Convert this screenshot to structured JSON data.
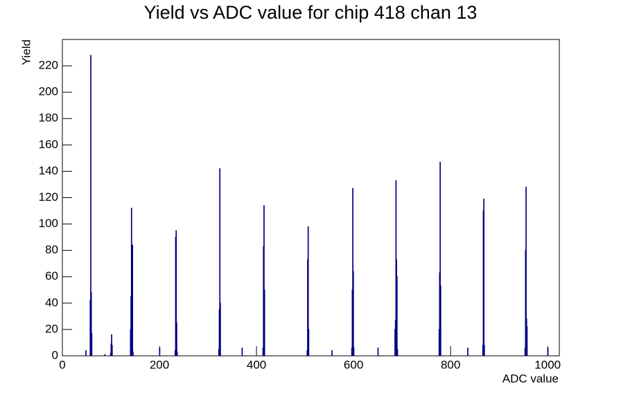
{
  "chart_data": {
    "type": "histogram",
    "title": "Yield vs ADC value for chip 418 chan 13",
    "x_label": "ADC value",
    "y_label": "Yield",
    "color": "#000080",
    "x": [
      48,
      57,
      58,
      59,
      60,
      87,
      99,
      100,
      101,
      102,
      140,
      141,
      142,
      143,
      144,
      145,
      200,
      232,
      233,
      234,
      235,
      236,
      322,
      323,
      324,
      325,
      370,
      413,
      414,
      415,
      416,
      504,
      505,
      506,
      507,
      555,
      596,
      597,
      598,
      599,
      600,
      650,
      685,
      686,
      687,
      688,
      689,
      690,
      776,
      777,
      778,
      779,
      835,
      866,
      867,
      868,
      869,
      953,
      954,
      955,
      956,
      957,
      1000
    ],
    "values": [
      4,
      42,
      228,
      48,
      17,
      1,
      2,
      9,
      16,
      8,
      20,
      45,
      112,
      45,
      84,
      3,
      6,
      4,
      90,
      95,
      25,
      3,
      5,
      35,
      142,
      40,
      6,
      6,
      83,
      114,
      50,
      4,
      73,
      98,
      20,
      4,
      6,
      50,
      127,
      64,
      6,
      6,
      20,
      27,
      133,
      73,
      60,
      5,
      20,
      63,
      147,
      53,
      6,
      8,
      110,
      119,
      8,
      6,
      80,
      128,
      28,
      22,
      6
    ],
    "xlim": [
      0,
      1024
    ],
    "ylim": [
      0,
      240
    ],
    "xticks": [
      0,
      200,
      400,
      600,
      800,
      1000
    ],
    "yticks": [
      0,
      20,
      40,
      60,
      80,
      100,
      120,
      140,
      160,
      180,
      200,
      220
    ]
  }
}
